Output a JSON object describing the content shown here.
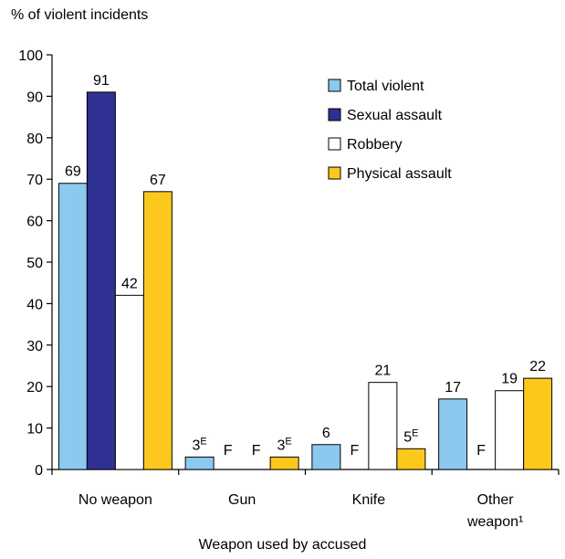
{
  "chart_data": {
    "type": "bar",
    "ylabel": "% of violent incidents",
    "xlabel": "Weapon used by accused",
    "ylim": [
      0,
      100
    ],
    "yticks": [
      0,
      10,
      20,
      30,
      40,
      50,
      60,
      70,
      80,
      90,
      100
    ],
    "grid": false,
    "legend_position": "top-right",
    "categories": [
      [
        "No weapon"
      ],
      [
        "Gun"
      ],
      [
        "Knife"
      ],
      [
        "Other",
        "weapon¹"
      ]
    ],
    "series": [
      {
        "name": "Total violent",
        "color": "#8cc9ee",
        "values": [
          69,
          3,
          6,
          17
        ],
        "labels": [
          "69",
          "3",
          "6",
          "17"
        ],
        "flags": [
          "",
          "E",
          "",
          ""
        ]
      },
      {
        "name": "Sexual assault",
        "color": "#2e3192",
        "values": [
          91,
          null,
          null,
          null
        ],
        "labels": [
          "91",
          "F",
          "F",
          "F"
        ],
        "flags": [
          "",
          "",
          "",
          ""
        ]
      },
      {
        "name": "Robbery",
        "color": "#ffffff",
        "values": [
          42,
          null,
          21,
          19
        ],
        "labels": [
          "42",
          "F",
          "21",
          "19"
        ],
        "flags": [
          "",
          "",
          "",
          ""
        ]
      },
      {
        "name": "Physical assault",
        "color": "#fcc81c",
        "values": [
          67,
          3,
          5,
          22
        ],
        "labels": [
          "67",
          "3",
          "5",
          "22"
        ],
        "flags": [
          "",
          "E",
          "E",
          ""
        ]
      }
    ]
  }
}
